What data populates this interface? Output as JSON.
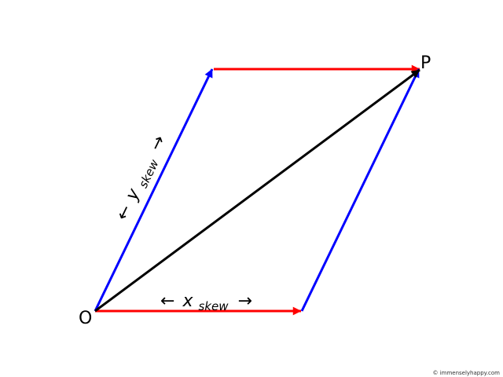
{
  "labels": {
    "origin": "O",
    "point": "P",
    "x_arrow_left": "←",
    "x_var": "x",
    "x_sub": "skew",
    "x_arrow_right": "→",
    "y_arrow_left": "←",
    "y_var": "y",
    "y_sub": "skew",
    "y_arrow_right": "→"
  },
  "credit": "© immenselyhappy.com",
  "colors": {
    "x_vector": "#ff0000",
    "y_vector": "#0000ff",
    "resultant": "#000000"
  }
}
